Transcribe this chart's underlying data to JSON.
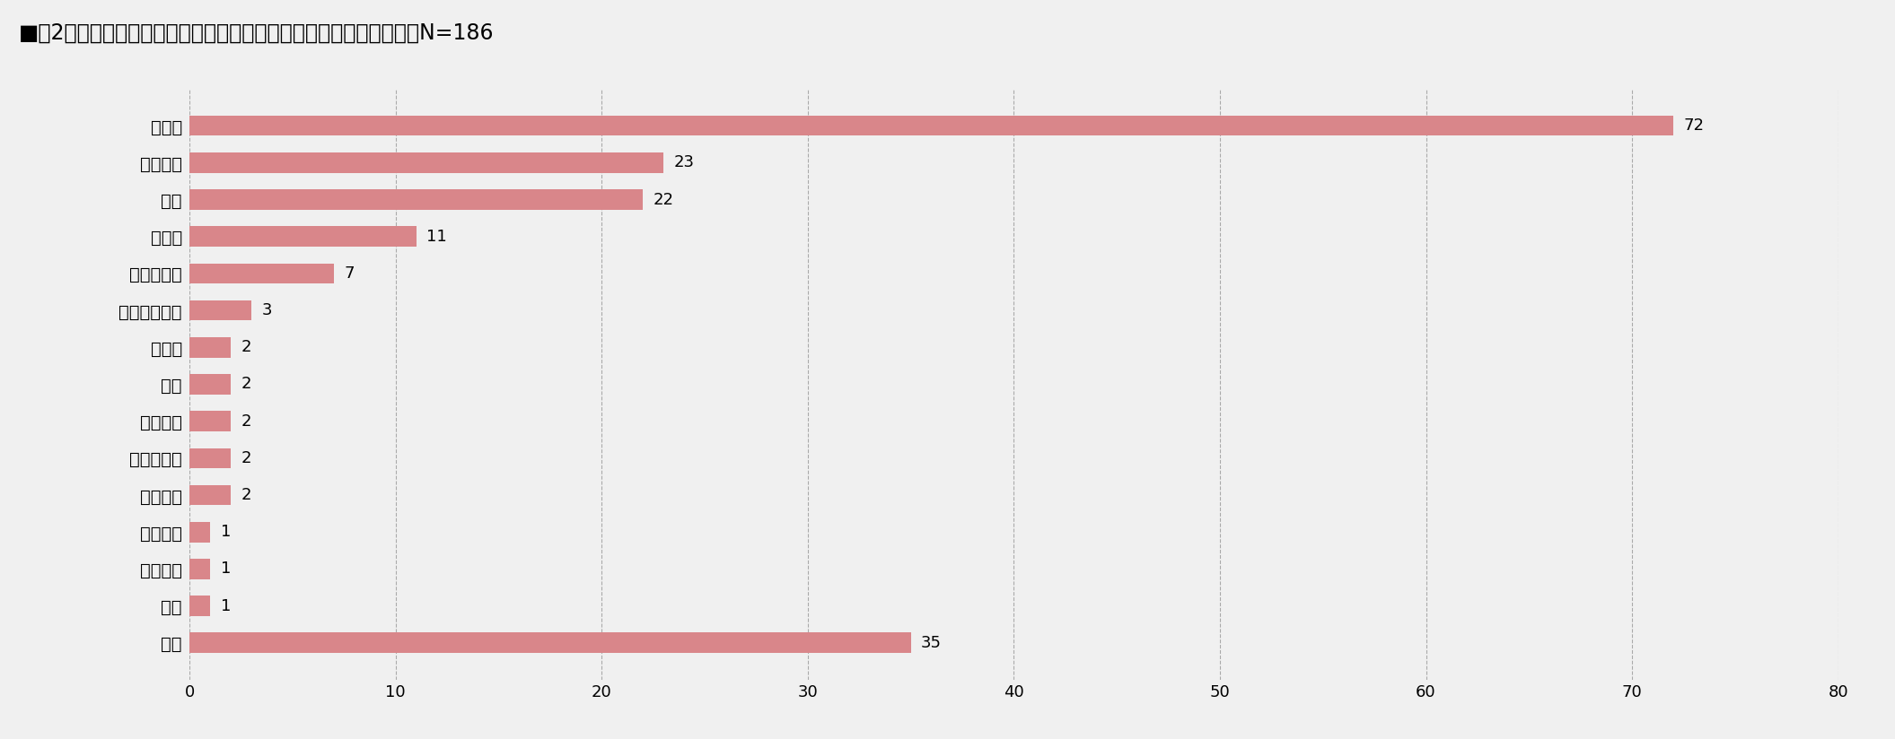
{
  "title": "■図2　孤立死の事例において最初に居住者の異変に気が付いた人　N=186",
  "categories": [
    "管理員",
    "近隣住民",
    "親族",
    "勤務先",
    "訪問介護者",
    "宅配弁当会社",
    "市役所",
    "知人",
    "管理会社",
    "新聞配達員",
    "警備会社",
    "ガス会社",
    "民生委員",
    "理事",
    "不明"
  ],
  "values": [
    72,
    23,
    22,
    11,
    7,
    3,
    2,
    2,
    2,
    2,
    2,
    1,
    1,
    1,
    35
  ],
  "bar_color": "#d9868a",
  "background_color": "#f0f0f0",
  "xlim": [
    0,
    80
  ],
  "xticks": [
    0,
    10,
    20,
    30,
    40,
    50,
    60,
    70,
    80
  ],
  "title_fontsize": 17,
  "label_fontsize": 14,
  "value_fontsize": 13,
  "tick_fontsize": 13,
  "bar_height": 0.55
}
